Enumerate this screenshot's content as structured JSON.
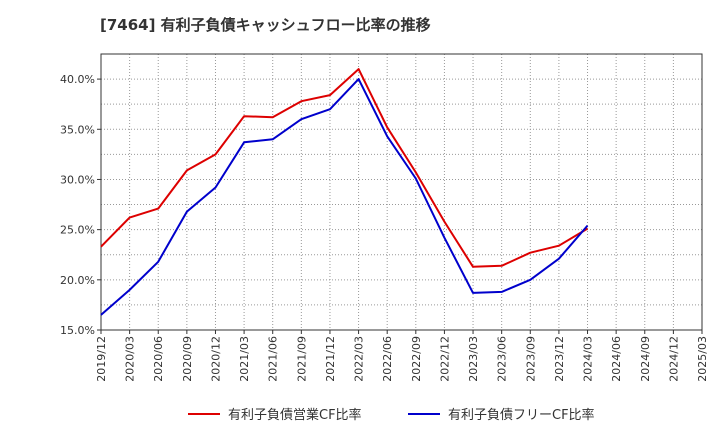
{
  "chart_data": {
    "type": "line",
    "title": "[7464]  有利子負債キャッシュフロー比率の推移",
    "x": [
      "2019/12",
      "2020/03",
      "2020/06",
      "2020/09",
      "2020/12",
      "2021/03",
      "2021/06",
      "2021/09",
      "2021/12",
      "2022/03",
      "2022/06",
      "2022/09",
      "2022/12",
      "2023/03",
      "2023/06",
      "2023/09",
      "2023/12",
      "2024/03",
      "2024/06",
      "2024/09",
      "2024/12",
      "2025/03"
    ],
    "ylim": [
      15.0,
      42.5
    ],
    "yticks": [
      "15.0%",
      "20.0%",
      "25.0%",
      "30.0%",
      "35.0%",
      "40.0%"
    ],
    "ytick_values": [
      15,
      20,
      25,
      30,
      35,
      40
    ],
    "grid": true,
    "legend_position": "bottom",
    "series": [
      {
        "name": "有利子負債営業CF比率",
        "color": "#dd0000",
        "values": [
          23.3,
          26.2,
          27.1,
          30.9,
          32.5,
          36.3,
          36.2,
          37.8,
          38.4,
          41.0,
          35.2,
          30.7,
          25.8,
          21.3,
          21.4,
          22.7,
          23.4,
          25.1,
          null,
          null,
          null,
          null
        ]
      },
      {
        "name": "有利子負債フリーCF比率",
        "color": "#0000cc",
        "values": [
          16.5,
          19.0,
          21.8,
          26.8,
          29.2,
          33.7,
          34.0,
          36.0,
          37.0,
          40.0,
          34.3,
          30.1,
          24.2,
          18.7,
          18.8,
          20.0,
          22.1,
          25.4,
          null,
          null,
          null,
          null
        ]
      }
    ]
  }
}
